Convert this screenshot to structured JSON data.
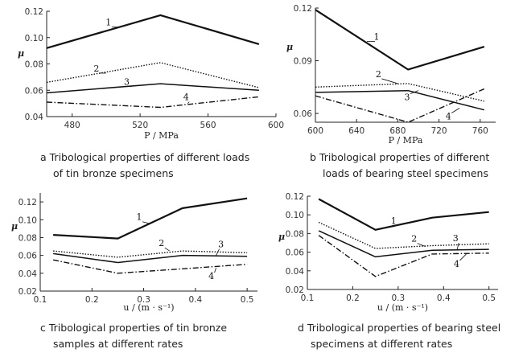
{
  "chart_data": [
    {
      "id": "a",
      "type": "line",
      "xlabel": "P / MPa",
      "ylabel": "μ",
      "xlim": [
        465,
        600
      ],
      "ylim": [
        0.04,
        0.12
      ],
      "xticks": [
        "480",
        "520",
        "560",
        "600"
      ],
      "xtick_values": [
        480,
        520,
        560,
        600
      ],
      "yticks": [
        "0.04",
        "0.06",
        "0.08",
        "0.10",
        "0.12"
      ],
      "ytick_values": [
        0.04,
        0.06,
        0.08,
        0.1,
        0.12
      ],
      "series": [
        {
          "name": "1",
          "x": [
            465,
            532,
            590
          ],
          "values": [
            0.092,
            0.117,
            0.095
          ]
        },
        {
          "name": "2",
          "x": [
            465,
            532,
            590
          ],
          "values": [
            0.066,
            0.081,
            0.062
          ]
        },
        {
          "name": "3",
          "x": [
            465,
            532,
            590
          ],
          "values": [
            0.058,
            0.065,
            0.06
          ]
        },
        {
          "name": "4",
          "x": [
            465,
            532,
            590
          ],
          "values": [
            0.051,
            0.047,
            0.055
          ]
        }
      ],
      "caption_main": "a  Tribological properties of different loads",
      "caption_sub": "of tin bronze specimens"
    },
    {
      "id": "b",
      "type": "line",
      "xlabel": "P / MPa",
      "ylabel": "μ",
      "xlim": [
        600,
        775
      ],
      "ylim": [
        0.055,
        0.12
      ],
      "xticks": [
        "600",
        "640",
        "680",
        "720",
        "760"
      ],
      "xtick_values": [
        600,
        640,
        680,
        720,
        760
      ],
      "yticks": [
        "0.06",
        "0.09",
        "0.12"
      ],
      "ytick_values": [
        0.06,
        0.09,
        0.12
      ],
      "series": [
        {
          "name": "1",
          "x": [
            600,
            690,
            764
          ],
          "values": [
            0.119,
            0.085,
            0.098
          ]
        },
        {
          "name": "2",
          "x": [
            600,
            690,
            764
          ],
          "values": [
            0.075,
            0.077,
            0.067
          ]
        },
        {
          "name": "3",
          "x": [
            600,
            690,
            764
          ],
          "values": [
            0.072,
            0.073,
            0.062
          ]
        },
        {
          "name": "4",
          "x": [
            600,
            690,
            764
          ],
          "values": [
            0.07,
            0.055,
            0.074
          ]
        }
      ],
      "caption_main": "b  Tribological properties of different",
      "caption_sub": "loads of bearing steel specimens"
    },
    {
      "id": "c",
      "type": "line",
      "xlabel": "u / (m · s⁻¹)",
      "ylabel": "μ",
      "xlim": [
        0.1,
        0.52
      ],
      "ylim": [
        0.02,
        0.13
      ],
      "xticks": [
        "0.1",
        "0.2",
        "0.3",
        "0.4",
        "0.5"
      ],
      "xtick_values": [
        0.1,
        0.2,
        0.3,
        0.4,
        0.5
      ],
      "yticks": [
        "0.02",
        "0.04",
        "0.06",
        "0.08",
        "0.10",
        "0.12"
      ],
      "ytick_values": [
        0.02,
        0.04,
        0.06,
        0.08,
        0.1,
        0.12
      ],
      "series": [
        {
          "name": "1",
          "x": [
            0.125,
            0.25,
            0.375,
            0.5
          ],
          "values": [
            0.083,
            0.079,
            0.113,
            0.124
          ]
        },
        {
          "name": "2",
          "x": [
            0.125,
            0.25,
            0.375,
            0.5
          ],
          "values": [
            0.065,
            0.058,
            0.065,
            0.063
          ]
        },
        {
          "name": "3",
          "x": [
            0.125,
            0.25,
            0.375,
            0.5
          ],
          "values": [
            0.062,
            0.052,
            0.06,
            0.059
          ]
        },
        {
          "name": "4",
          "x": [
            0.125,
            0.25,
            0.375,
            0.5
          ],
          "values": [
            0.055,
            0.04,
            0.045,
            0.05
          ]
        }
      ],
      "caption_main": "c  Tribological properties of tin bronze",
      "caption_sub": "samples at different rates"
    },
    {
      "id": "d",
      "type": "line",
      "xlabel": "u / (m · s⁻¹)",
      "ylabel": "μ",
      "xlim": [
        0.1,
        0.52
      ],
      "ylim": [
        0.02,
        0.12
      ],
      "xticks": [
        "0.1",
        "0.2",
        "0.3",
        "0.4",
        "0.5"
      ],
      "xtick_values": [
        0.1,
        0.2,
        0.3,
        0.4,
        0.5
      ],
      "yticks": [
        "0.02",
        "0.04",
        "0.06",
        "0.08",
        "0.10",
        "0.12"
      ],
      "ytick_values": [
        0.02,
        0.04,
        0.06,
        0.08,
        0.1,
        0.12
      ],
      "series": [
        {
          "name": "1",
          "x": [
            0.125,
            0.25,
            0.375,
            0.5
          ],
          "values": [
            0.117,
            0.084,
            0.097,
            0.103
          ]
        },
        {
          "name": "2",
          "x": [
            0.125,
            0.25,
            0.375,
            0.5
          ],
          "values": [
            0.092,
            0.064,
            0.067,
            0.069
          ]
        },
        {
          "name": "3",
          "x": [
            0.125,
            0.25,
            0.375,
            0.5
          ],
          "values": [
            0.083,
            0.055,
            0.062,
            0.063
          ]
        },
        {
          "name": "4",
          "x": [
            0.125,
            0.25,
            0.375,
            0.5
          ],
          "values": [
            0.078,
            0.034,
            0.058,
            0.059
          ]
        }
      ],
      "caption_main": "d  Tribological properties of bearing steel",
      "caption_sub": "specimens at different rates"
    }
  ]
}
